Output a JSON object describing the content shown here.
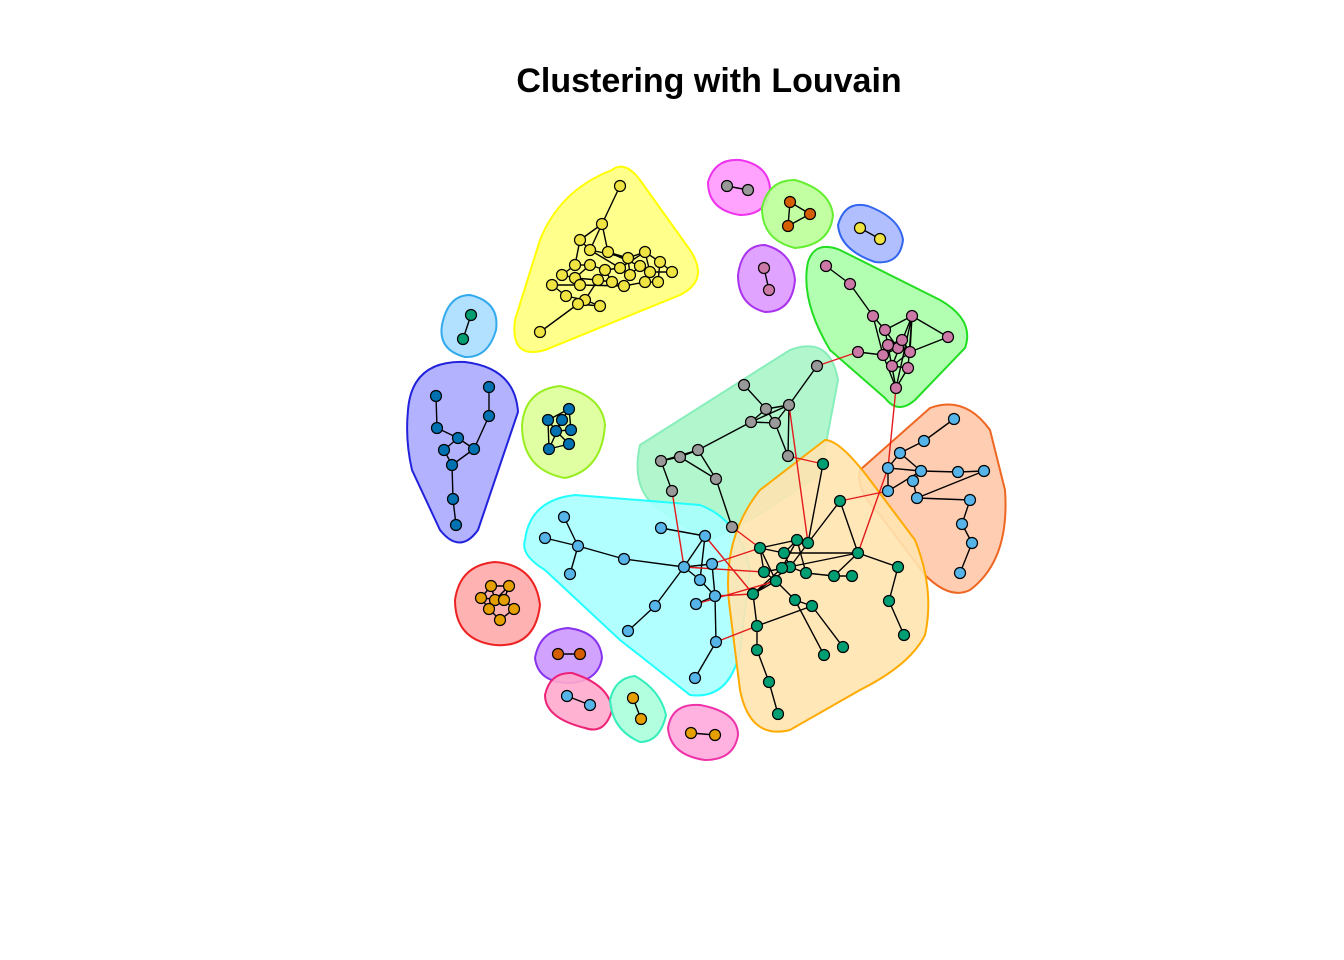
{
  "title": "Clustering with Louvain",
  "node_stroke": "#000000",
  "edge_color": "#000000",
  "cross_edge_color": "#e41a1c",
  "clusters": [
    {
      "id": "yellow",
      "fill": "#ffff80",
      "stroke": "#ffff00",
      "node_color": "#f0e442"
    },
    {
      "id": "magenta-top",
      "fill": "#ff99ff",
      "stroke": "#ee33ee",
      "node_color": "#999999"
    },
    {
      "id": "lime-top",
      "fill": "#bbff99",
      "stroke": "#66ee33",
      "node_color": "#d55e00"
    },
    {
      "id": "blue-small",
      "fill": "#aab8ff",
      "stroke": "#3366ee",
      "node_color": "#f0e442"
    },
    {
      "id": "violet-small",
      "fill": "#dd99ff",
      "stroke": "#aa33ee",
      "node_color": "#cc79a7"
    },
    {
      "id": "green-pink",
      "fill": "#aaffaa",
      "stroke": "#22dd22",
      "node_color": "#cc79a7"
    },
    {
      "id": "sky-small",
      "fill": "#aaddff",
      "stroke": "#33aaee",
      "node_color": "#009e73"
    },
    {
      "id": "blue-big",
      "fill": "#aaaaff",
      "stroke": "#2222dd",
      "node_color": "#0072b2"
    },
    {
      "id": "lime-mid",
      "fill": "#ddff99",
      "stroke": "#99ee22",
      "node_color": "#0072b2"
    },
    {
      "id": "mint",
      "fill": "#a8f5c8",
      "stroke": "#88eebb",
      "node_color": "#999999"
    },
    {
      "id": "salmon",
      "fill": "#ffc8a8",
      "stroke": "#ee6622",
      "node_color": "#56b4e9"
    },
    {
      "id": "cyan",
      "fill": "#aaffff",
      "stroke": "#22ffff",
      "node_color": "#56b4e9"
    },
    {
      "id": "orange",
      "fill": "#ffe4b0",
      "stroke": "#ffaa00",
      "node_color": "#009e73"
    },
    {
      "id": "red-small",
      "fill": "#ffaaaa",
      "stroke": "#ee2222",
      "node_color": "#e69f00"
    },
    {
      "id": "purple-small",
      "fill": "#cc99ff",
      "stroke": "#8833ee",
      "node_color": "#d55e00"
    },
    {
      "id": "pink-small",
      "fill": "#ffaacc",
      "stroke": "#ee2277",
      "node_color": "#56b4e9"
    },
    {
      "id": "teal-small",
      "fill": "#aaffdd",
      "stroke": "#33eebb",
      "node_color": "#e69f00"
    },
    {
      "id": "magenta-bottom",
      "fill": "#ffaadd",
      "stroke": "#ee33aa",
      "node_color": "#e69f00"
    }
  ]
}
